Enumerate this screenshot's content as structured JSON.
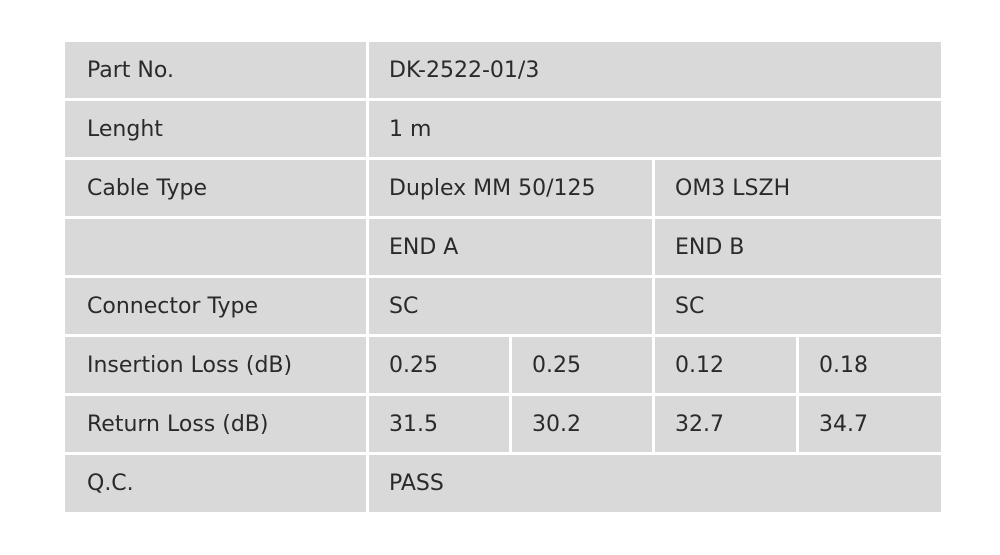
{
  "table": {
    "rows": [
      [
        "Part No.",
        "DK-2522-01/3"
      ],
      [
        "Lenght",
        "1 m"
      ],
      [
        "Cable Type",
        "Duplex MM 50/125",
        "OM3 LSZH"
      ],
      [
        "END A",
        "END B"
      ],
      [
        "Connector Type",
        "SC",
        "SC"
      ],
      [
        "Insertion Loss (dB)",
        "0.25",
        "0.25",
        "0.12",
        "0.18"
      ],
      [
        "Return Loss (dB)",
        "31.5",
        "30.2",
        "32.7",
        "34.7"
      ],
      [
        "Q.C.",
        "PASS"
      ]
    ]
  }
}
